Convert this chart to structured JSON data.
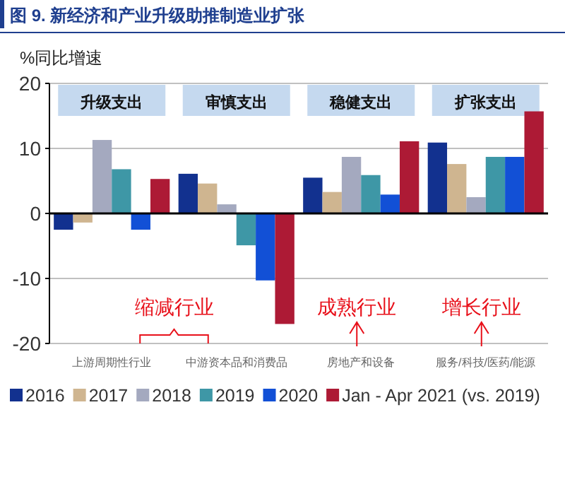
{
  "chart_data": {
    "type": "bar",
    "title": "图 9. 新经济和产业升级助推制造业扩张",
    "ylabel": "%同比增速",
    "categories": [
      "上游周期性行业",
      "中游资本品和消费品",
      "房地产和设备",
      "服务/科技/医药/能源"
    ],
    "series": [
      {
        "name": "2016",
        "color": "#12318f",
        "values": [
          -2.5,
          6.1,
          5.5,
          10.9
        ]
      },
      {
        "name": "2017",
        "color": "#cfb590",
        "values": [
          -1.4,
          4.6,
          3.3,
          7.6
        ]
      },
      {
        "name": "2018",
        "color": "#a4a9bf",
        "values": [
          11.3,
          1.4,
          8.7,
          2.5
        ]
      },
      {
        "name": "2019",
        "color": "#3e97a6",
        "values": [
          6.8,
          -4.9,
          5.9,
          8.7
        ]
      },
      {
        "name": "2020",
        "color": "#1250d6",
        "values": [
          -2.5,
          -10.3,
          2.9,
          8.7
        ]
      },
      {
        "name": "Jan - Apr 2021 (vs. 2019)",
        "color": "#ad1a35",
        "values": [
          5.3,
          -17.0,
          11.1,
          15.7
        ]
      }
    ],
    "ylim": [
      -20,
      20
    ],
    "yticks": [
      -20,
      -10,
      0,
      10,
      20
    ],
    "grid": "y",
    "legend": "bottom",
    "annotations": [
      "升级支出",
      "审慎支出",
      "稳健支出",
      "扩张支出",
      "缩减行业",
      "成熟行业",
      "增长行业"
    ]
  }
}
